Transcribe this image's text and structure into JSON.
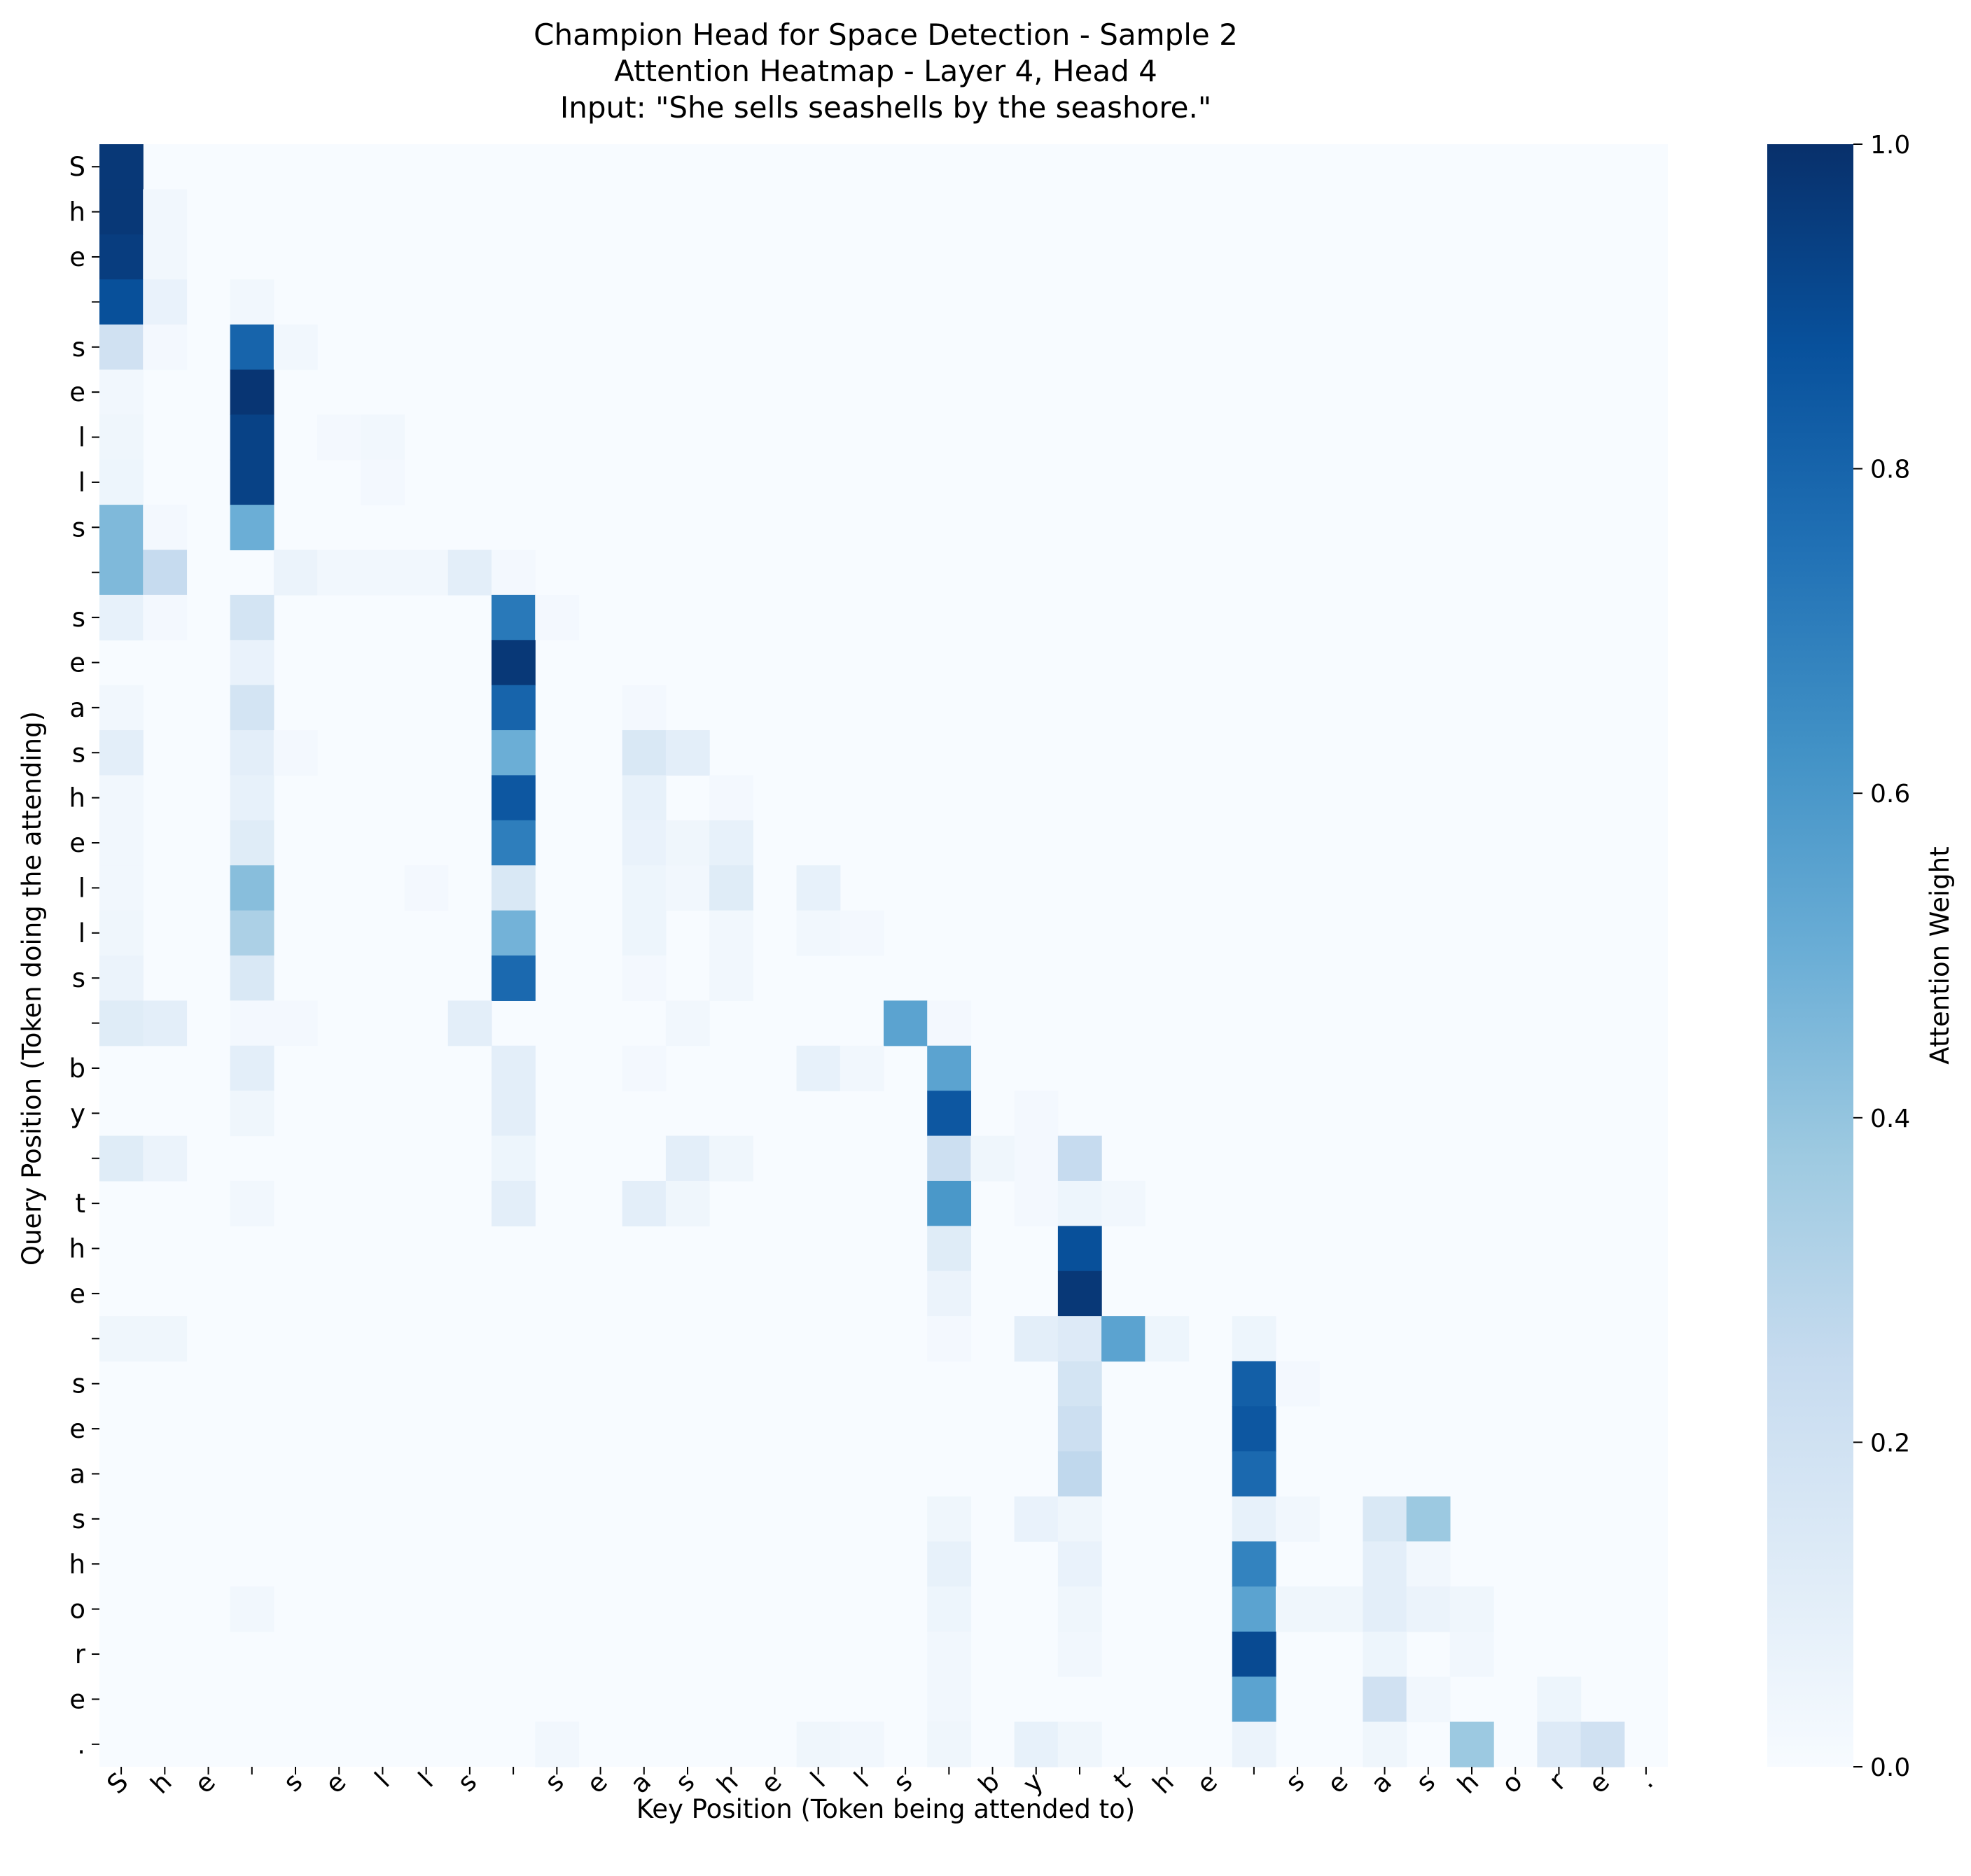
{
  "chart_data": {
    "type": "heatmap",
    "title_lines": [
      "Champion Head for Space Detection - Sample 2",
      "Attention Heatmap - Layer 4, Head 4",
      "Input: \"She sells seashells by the seashore.\""
    ],
    "xlabel": "Key Position (Token being attended to)",
    "ylabel": "Query Position (Token doing the attending)",
    "colorbar_label": "Attention Weight",
    "colormap": "Blues",
    "color_stops": [
      "#f7fbff",
      "#deebf7",
      "#c6dbef",
      "#9ecae1",
      "#6baed6",
      "#4292c6",
      "#2171b5",
      "#08519c",
      "#08306b"
    ],
    "vmin": 0.0,
    "vmax": 1.0,
    "colorbar_ticks": [
      "0.0",
      "0.2",
      "0.4",
      "0.6",
      "0.8",
      "1.0"
    ],
    "tokens": [
      "S",
      "h",
      "e",
      " ",
      "s",
      "e",
      "l",
      "l",
      "s",
      " ",
      "s",
      "e",
      "a",
      "s",
      "h",
      "e",
      "l",
      "l",
      "s",
      " ",
      "b",
      "y",
      " ",
      "t",
      "h",
      "e",
      " ",
      "s",
      "e",
      "a",
      "s",
      "h",
      "o",
      "r",
      "e",
      "."
    ],
    "cells": [
      [
        0,
        0,
        0.97
      ],
      [
        1,
        0,
        0.97
      ],
      [
        1,
        1,
        0.03
      ],
      [
        2,
        0,
        0.95
      ],
      [
        2,
        1,
        0.03
      ],
      [
        3,
        0,
        0.88
      ],
      [
        3,
        1,
        0.07
      ],
      [
        3,
        3,
        0.03
      ],
      [
        4,
        0,
        0.2
      ],
      [
        4,
        1,
        0.02
      ],
      [
        4,
        3,
        0.8
      ],
      [
        4,
        4,
        0.03
      ],
      [
        5,
        0,
        0.03
      ],
      [
        5,
        3,
        0.98
      ],
      [
        6,
        0,
        0.04
      ],
      [
        6,
        3,
        0.93
      ],
      [
        6,
        5,
        0.02
      ],
      [
        6,
        6,
        0.03
      ],
      [
        7,
        0,
        0.05
      ],
      [
        7,
        3,
        0.93
      ],
      [
        7,
        6,
        0.02
      ],
      [
        8,
        0,
        0.45
      ],
      [
        8,
        1,
        0.02
      ],
      [
        8,
        3,
        0.5
      ],
      [
        9,
        0,
        0.45
      ],
      [
        9,
        1,
        0.25
      ],
      [
        9,
        4,
        0.06
      ],
      [
        9,
        5,
        0.03
      ],
      [
        9,
        6,
        0.03
      ],
      [
        9,
        7,
        0.03
      ],
      [
        9,
        8,
        0.1
      ],
      [
        9,
        9,
        0.02
      ],
      [
        10,
        0,
        0.08
      ],
      [
        10,
        1,
        0.02
      ],
      [
        10,
        3,
        0.18
      ],
      [
        10,
        9,
        0.72
      ],
      [
        10,
        10,
        0.02
      ],
      [
        11,
        3,
        0.07
      ],
      [
        11,
        9,
        0.97
      ],
      [
        12,
        0,
        0.03
      ],
      [
        12,
        3,
        0.18
      ],
      [
        12,
        9,
        0.8
      ],
      [
        12,
        12,
        0.02
      ],
      [
        13,
        0,
        0.1
      ],
      [
        13,
        3,
        0.1
      ],
      [
        13,
        4,
        0.02
      ],
      [
        13,
        9,
        0.5
      ],
      [
        13,
        12,
        0.15
      ],
      [
        13,
        13,
        0.1
      ],
      [
        14,
        0,
        0.03
      ],
      [
        14,
        3,
        0.08
      ],
      [
        14,
        9,
        0.85
      ],
      [
        14,
        12,
        0.08
      ],
      [
        14,
        14,
        0.02
      ],
      [
        15,
        0,
        0.03
      ],
      [
        15,
        3,
        0.12
      ],
      [
        15,
        9,
        0.7
      ],
      [
        15,
        12,
        0.07
      ],
      [
        15,
        13,
        0.04
      ],
      [
        15,
        14,
        0.08
      ],
      [
        16,
        0,
        0.03
      ],
      [
        16,
        3,
        0.43
      ],
      [
        16,
        7,
        0.02
      ],
      [
        16,
        9,
        0.15
      ],
      [
        16,
        12,
        0.05
      ],
      [
        16,
        13,
        0.03
      ],
      [
        16,
        14,
        0.12
      ],
      [
        16,
        16,
        0.08
      ],
      [
        17,
        0,
        0.04
      ],
      [
        17,
        3,
        0.33
      ],
      [
        17,
        9,
        0.48
      ],
      [
        17,
        12,
        0.05
      ],
      [
        17,
        14,
        0.03
      ],
      [
        17,
        16,
        0.03
      ],
      [
        17,
        17,
        0.02
      ],
      [
        18,
        0,
        0.06
      ],
      [
        18,
        3,
        0.15
      ],
      [
        18,
        9,
        0.78
      ],
      [
        18,
        12,
        0.02
      ],
      [
        18,
        14,
        0.03
      ],
      [
        19,
        0,
        0.12
      ],
      [
        19,
        1,
        0.1
      ],
      [
        19,
        3,
        0.02
      ],
      [
        19,
        4,
        0.02
      ],
      [
        19,
        8,
        0.1
      ],
      [
        19,
        13,
        0.03
      ],
      [
        19,
        18,
        0.55
      ],
      [
        19,
        19,
        0.02
      ],
      [
        20,
        3,
        0.1
      ],
      [
        20,
        9,
        0.1
      ],
      [
        20,
        12,
        0.02
      ],
      [
        20,
        16,
        0.08
      ],
      [
        20,
        17,
        0.03
      ],
      [
        20,
        19,
        0.55
      ],
      [
        21,
        3,
        0.04
      ],
      [
        21,
        9,
        0.1
      ],
      [
        21,
        19,
        0.85
      ],
      [
        21,
        21,
        0.02
      ],
      [
        22,
        0,
        0.12
      ],
      [
        22,
        1,
        0.06
      ],
      [
        22,
        9,
        0.05
      ],
      [
        22,
        13,
        0.1
      ],
      [
        22,
        14,
        0.04
      ],
      [
        22,
        19,
        0.22
      ],
      [
        22,
        20,
        0.04
      ],
      [
        22,
        21,
        0.02
      ],
      [
        22,
        22,
        0.25
      ],
      [
        23,
        3,
        0.03
      ],
      [
        23,
        9,
        0.1
      ],
      [
        23,
        12,
        0.1
      ],
      [
        23,
        13,
        0.04
      ],
      [
        23,
        19,
        0.6
      ],
      [
        23,
        21,
        0.02
      ],
      [
        23,
        22,
        0.05
      ],
      [
        23,
        23,
        0.03
      ],
      [
        24,
        19,
        0.12
      ],
      [
        24,
        22,
        0.88
      ],
      [
        25,
        19,
        0.06
      ],
      [
        25,
        22,
        0.97
      ],
      [
        26,
        0,
        0.04
      ],
      [
        26,
        1,
        0.04
      ],
      [
        26,
        19,
        0.02
      ],
      [
        26,
        21,
        0.1
      ],
      [
        26,
        22,
        0.13
      ],
      [
        26,
        23,
        0.55
      ],
      [
        26,
        24,
        0.05
      ],
      [
        26,
        26,
        0.05
      ],
      [
        27,
        22,
        0.18
      ],
      [
        27,
        26,
        0.82
      ],
      [
        27,
        27,
        0.02
      ],
      [
        28,
        22,
        0.22
      ],
      [
        28,
        26,
        0.85
      ],
      [
        29,
        22,
        0.27
      ],
      [
        29,
        26,
        0.78
      ],
      [
        30,
        19,
        0.04
      ],
      [
        30,
        21,
        0.07
      ],
      [
        30,
        22,
        0.04
      ],
      [
        30,
        26,
        0.08
      ],
      [
        30,
        27,
        0.03
      ],
      [
        30,
        29,
        0.15
      ],
      [
        30,
        30,
        0.38
      ],
      [
        31,
        19,
        0.08
      ],
      [
        31,
        22,
        0.07
      ],
      [
        31,
        26,
        0.68
      ],
      [
        31,
        29,
        0.1
      ],
      [
        31,
        30,
        0.03
      ],
      [
        32,
        3,
        0.03
      ],
      [
        32,
        19,
        0.05
      ],
      [
        32,
        22,
        0.04
      ],
      [
        32,
        26,
        0.55
      ],
      [
        32,
        27,
        0.04
      ],
      [
        32,
        28,
        0.04
      ],
      [
        32,
        29,
        0.1
      ],
      [
        32,
        30,
        0.06
      ],
      [
        32,
        31,
        0.04
      ],
      [
        33,
        19,
        0.03
      ],
      [
        33,
        22,
        0.03
      ],
      [
        33,
        26,
        0.9
      ],
      [
        33,
        29,
        0.05
      ],
      [
        33,
        31,
        0.03
      ],
      [
        34,
        19,
        0.03
      ],
      [
        34,
        26,
        0.55
      ],
      [
        34,
        29,
        0.2
      ],
      [
        34,
        30,
        0.03
      ],
      [
        34,
        33,
        0.05
      ],
      [
        35,
        10,
        0.03
      ],
      [
        35,
        16,
        0.04
      ],
      [
        35,
        17,
        0.03
      ],
      [
        35,
        19,
        0.04
      ],
      [
        35,
        21,
        0.08
      ],
      [
        35,
        22,
        0.04
      ],
      [
        35,
        26,
        0.06
      ],
      [
        35,
        29,
        0.04
      ],
      [
        35,
        31,
        0.38
      ],
      [
        35,
        33,
        0.13
      ],
      [
        35,
        34,
        0.2
      ]
    ]
  }
}
